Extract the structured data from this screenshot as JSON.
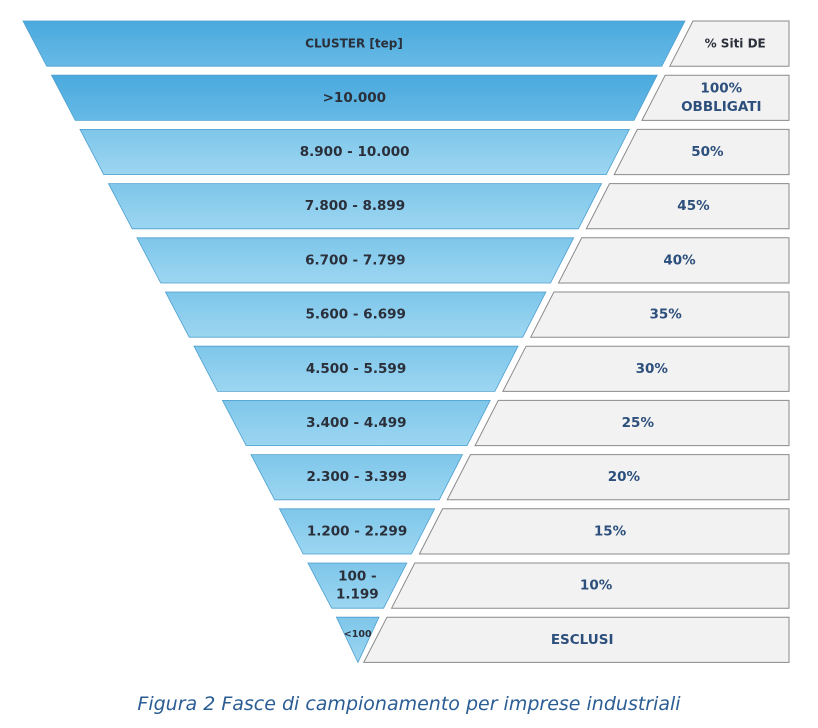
{
  "header": {
    "cluster": "CLUSTER [tep]",
    "percent": "% Siti DE"
  },
  "rows": [
    {
      "cluster": [
        ">10.000"
      ],
      "percent": [
        "100%",
        "OBBLIGATI"
      ]
    },
    {
      "cluster": [
        "8.900 - 10.000"
      ],
      "percent": [
        "50%"
      ]
    },
    {
      "cluster": [
        "7.800 - 8.899"
      ],
      "percent": [
        "45%"
      ]
    },
    {
      "cluster": [
        "6.700 - 7.799"
      ],
      "percent": [
        "40%"
      ]
    },
    {
      "cluster": [
        "5.600 - 6.699"
      ],
      "percent": [
        "35%"
      ]
    },
    {
      "cluster": [
        "4.500 - 5.599"
      ],
      "percent": [
        "30%"
      ]
    },
    {
      "cluster": [
        "3.400 - 4.499"
      ],
      "percent": [
        "25%"
      ]
    },
    {
      "cluster": [
        "2.300 - 3.399"
      ],
      "percent": [
        "20%"
      ]
    },
    {
      "cluster": [
        "1.200 - 2.299"
      ],
      "percent": [
        "15%"
      ]
    },
    {
      "cluster": [
        "100 -",
        "1.199"
      ],
      "percent": [
        "10%"
      ]
    },
    {
      "cluster": [
        "<100"
      ],
      "percent": [
        "ESCLUSI"
      ]
    }
  ],
  "caption": "Figura 2 Fasce di campionamento per imprese industriali",
  "colors": {
    "funnel_dark": "#4aa9dd",
    "funnel_light": "#8ccfee",
    "funnel_stroke": "#4d9fcf",
    "box_fill": "#f2f2f2",
    "box_stroke": "#8a8a8a",
    "label_text": "#2a2f3a",
    "percent_text": "#2c4f7c",
    "caption_text": "#2a5d94"
  }
}
